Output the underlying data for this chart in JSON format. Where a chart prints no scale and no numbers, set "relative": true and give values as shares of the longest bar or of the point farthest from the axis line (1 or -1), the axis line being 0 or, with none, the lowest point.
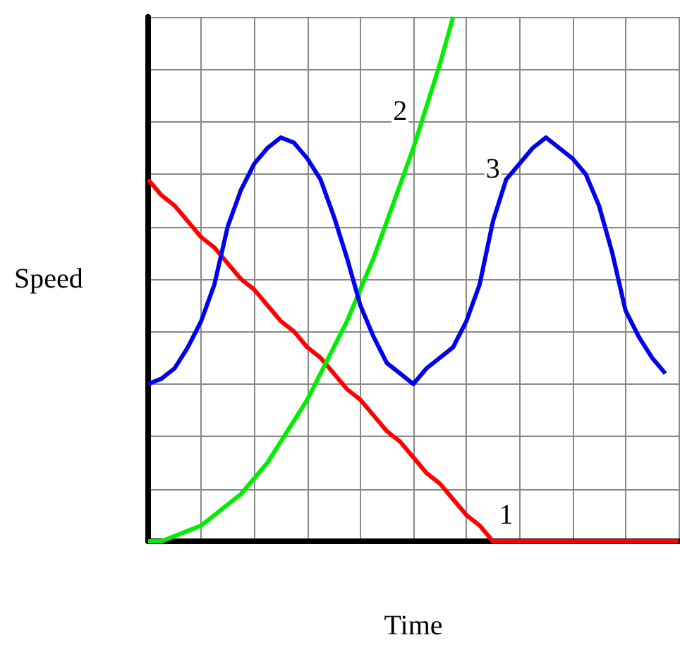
{
  "chart_data": {
    "type": "line",
    "relative": true,
    "xlabel": "Time",
    "ylabel": "Speed",
    "categories": [
      null,
      null,
      null,
      null,
      null,
      null,
      null,
      null,
      null,
      null,
      null,
      null,
      null,
      null,
      null,
      null,
      null,
      null,
      null,
      null,
      null,
      null,
      null,
      null,
      null,
      null,
      null,
      null,
      null,
      null,
      null,
      null,
      null,
      null,
      null,
      null,
      null,
      null,
      null,
      null,
      null
    ],
    "tick_labels": false,
    "grid": true,
    "legend": false,
    "marker": "none",
    "line_style": "solid",
    "series": [
      {
        "name": "1",
        "color": "#ff0000",
        "values": [
          0.69,
          0.66,
          0.64,
          0.61,
          0.58,
          0.56,
          0.53,
          0.5,
          0.48,
          0.45,
          0.42,
          0.4,
          0.37,
          0.35,
          0.32,
          0.29,
          0.27,
          0.24,
          0.21,
          0.19,
          0.16,
          0.13,
          0.11,
          0.08,
          0.05,
          0.03,
          0,
          0,
          0,
          0,
          0,
          0,
          0,
          0,
          0,
          0,
          0,
          0,
          0,
          0,
          0
        ]
      },
      {
        "name": "2",
        "color": "#00ee00",
        "values": [
          0,
          0,
          0.01,
          0.02,
          0.03,
          0.05,
          0.07,
          0.09,
          0.12,
          0.15,
          0.19,
          0.23,
          0.27,
          0.32,
          0.37,
          0.42,
          0.48,
          0.54,
          0.61,
          0.68,
          0.75,
          0.83,
          0.91,
          1.0,
          null,
          null,
          null,
          null,
          null,
          null,
          null,
          null,
          null,
          null,
          null,
          null,
          null,
          null,
          null,
          null,
          null
        ]
      },
      {
        "name": "3",
        "color": "#0000ee",
        "values": [
          0.3,
          0.31,
          0.33,
          0.37,
          0.42,
          0.49,
          0.6,
          0.67,
          0.72,
          0.75,
          0.77,
          0.76,
          0.73,
          0.69,
          0.62,
          0.54,
          0.45,
          0.39,
          0.34,
          0.32,
          0.3,
          0.33,
          0.35,
          0.37,
          0.42,
          0.49,
          0.61,
          0.69,
          0.72,
          0.75,
          0.77,
          0.75,
          0.73,
          0.7,
          0.64,
          0.55,
          0.44,
          0.39,
          0.35,
          0.32,
          null
        ]
      }
    ]
  }
}
